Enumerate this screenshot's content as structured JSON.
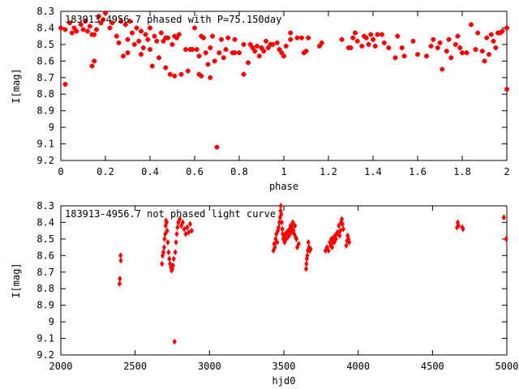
{
  "colors": {
    "points": "#ff0000",
    "axes": "#000000",
    "background": "#ffffff"
  },
  "chart_data": [
    {
      "type": "scatter",
      "title": "183913-4956.7 phased with P=75.150day",
      "xlabel": "phase",
      "ylabel": "I[mag]",
      "xlim": [
        0,
        2
      ],
      "ylim": [
        8.3,
        9.2
      ],
      "y_inverted": true,
      "grid": false,
      "xticks": [
        0,
        0.2,
        0.4,
        0.6,
        0.8,
        1,
        1.2,
        1.4,
        1.6,
        1.8,
        2
      ],
      "xtick_labels": [
        "0",
        "0.2",
        "0.4",
        "0.6",
        "0.8",
        "1",
        "1.2",
        "1.4",
        "1.6",
        "1.8",
        "2"
      ],
      "yticks": [
        8.3,
        8.4,
        8.5,
        8.6,
        8.7,
        8.8,
        8.9,
        9,
        9.1,
        9.2
      ],
      "ytick_labels": [
        "8.3",
        "8.4",
        "8.5",
        "8.6",
        "8.7",
        "8.8",
        "8.9",
        "9",
        "9.1",
        "9.2"
      ],
      "points": [
        [
          0.0,
          8.4
        ],
        [
          0.02,
          8.41
        ],
        [
          0.02,
          8.74
        ],
        [
          0.04,
          8.37
        ],
        [
          0.05,
          8.43
        ],
        [
          0.06,
          8.4
        ],
        [
          0.07,
          8.42
        ],
        [
          0.09,
          8.38
        ],
        [
          0.1,
          8.41
        ],
        [
          0.11,
          8.36
        ],
        [
          0.12,
          8.42
        ],
        [
          0.13,
          8.39
        ],
        [
          0.14,
          8.44
        ],
        [
          0.14,
          8.63
        ],
        [
          0.15,
          8.44
        ],
        [
          0.15,
          8.6
        ],
        [
          0.16,
          8.41
        ],
        [
          0.17,
          8.33
        ],
        [
          0.18,
          8.37
        ],
        [
          0.19,
          8.35
        ],
        [
          0.2,
          8.31
        ],
        [
          0.22,
          8.4
        ],
        [
          0.23,
          8.37
        ],
        [
          0.25,
          8.45
        ],
        [
          0.26,
          8.49
        ],
        [
          0.27,
          8.36
        ],
        [
          0.28,
          8.57
        ],
        [
          0.29,
          8.38
        ],
        [
          0.3,
          8.47
        ],
        [
          0.3,
          8.55
        ],
        [
          0.31,
          8.36
        ],
        [
          0.32,
          8.43
        ],
        [
          0.33,
          8.5
        ],
        [
          0.34,
          8.4
        ],
        [
          0.35,
          8.48
        ],
        [
          0.36,
          8.42
        ],
        [
          0.36,
          8.56
        ],
        [
          0.37,
          8.52
        ],
        [
          0.38,
          8.44
        ],
        [
          0.39,
          8.47
        ],
        [
          0.4,
          8.4
        ],
        [
          0.4,
          8.53
        ],
        [
          0.41,
          8.63
        ],
        [
          0.42,
          8.45
        ],
        [
          0.43,
          8.48
        ],
        [
          0.44,
          8.58
        ],
        [
          0.45,
          8.43
        ],
        [
          0.46,
          8.48
        ],
        [
          0.47,
          8.46
        ],
        [
          0.47,
          8.64
        ],
        [
          0.48,
          8.46
        ],
        [
          0.49,
          8.68
        ],
        [
          0.5,
          8.5
        ],
        [
          0.51,
          8.45
        ],
        [
          0.51,
          8.69
        ],
        [
          0.52,
          8.46
        ],
        [
          0.53,
          8.44
        ],
        [
          0.54,
          8.68
        ],
        [
          0.56,
          8.53
        ],
        [
          0.57,
          8.66
        ],
        [
          0.58,
          8.53
        ],
        [
          0.59,
          8.53
        ],
        [
          0.6,
          8.4
        ],
        [
          0.61,
          8.53
        ],
        [
          0.62,
          8.57
        ],
        [
          0.62,
          8.68
        ],
        [
          0.63,
          8.45
        ],
        [
          0.63,
          8.69
        ],
        [
          0.64,
          8.46
        ],
        [
          0.65,
          8.55
        ],
        [
          0.66,
          8.62
        ],
        [
          0.67,
          8.52
        ],
        [
          0.67,
          8.7
        ],
        [
          0.68,
          8.45
        ],
        [
          0.69,
          8.6
        ],
        [
          0.7,
          9.12
        ],
        [
          0.71,
          8.55
        ],
        [
          0.72,
          8.47
        ],
        [
          0.73,
          8.58
        ],
        [
          0.74,
          8.53
        ],
        [
          0.75,
          8.46
        ],
        [
          0.77,
          8.55
        ],
        [
          0.78,
          8.47
        ],
        [
          0.78,
          8.55
        ],
        [
          0.8,
          8.55
        ],
        [
          0.82,
          8.5
        ],
        [
          0.82,
          8.68
        ],
        [
          0.84,
          8.61
        ],
        [
          0.85,
          8.5
        ],
        [
          0.86,
          8.52
        ],
        [
          0.87,
          8.54
        ],
        [
          0.88,
          8.51
        ],
        [
          0.89,
          8.57
        ],
        [
          0.9,
          8.52
        ],
        [
          0.91,
          8.54
        ],
        [
          0.92,
          8.48
        ],
        [
          0.93,
          8.52
        ],
        [
          0.94,
          8.5
        ],
        [
          0.95,
          8.5
        ],
        [
          0.97,
          8.49
        ],
        [
          0.98,
          8.53
        ],
        [
          0.99,
          8.55
        ],
        [
          1.0,
          8.57
        ],
        [
          1.01,
          8.51
        ],
        [
          1.03,
          8.43
        ],
        [
          1.03,
          8.47
        ],
        [
          1.06,
          8.46
        ],
        [
          1.08,
          8.46
        ],
        [
          1.09,
          8.55
        ],
        [
          1.1,
          8.54
        ],
        [
          1.11,
          8.46
        ],
        [
          1.16,
          8.51
        ],
        [
          1.17,
          8.49
        ],
        [
          1.26,
          8.47
        ],
        [
          1.29,
          8.52
        ],
        [
          1.3,
          8.52
        ],
        [
          1.31,
          8.46
        ],
        [
          1.32,
          8.43
        ],
        [
          1.33,
          8.48
        ],
        [
          1.35,
          8.51
        ],
        [
          1.36,
          8.45
        ],
        [
          1.37,
          8.46
        ],
        [
          1.38,
          8.5
        ],
        [
          1.39,
          8.44
        ],
        [
          1.4,
          8.47
        ],
        [
          1.41,
          8.51
        ],
        [
          1.42,
          8.44
        ],
        [
          1.44,
          8.44
        ],
        [
          1.45,
          8.49
        ],
        [
          1.47,
          8.52
        ],
        [
          1.5,
          8.58
        ],
        [
          1.51,
          8.45
        ],
        [
          1.53,
          8.52
        ],
        [
          1.54,
          8.57
        ],
        [
          1.58,
          8.48
        ],
        [
          1.6,
          8.56
        ],
        [
          1.64,
          8.57
        ],
        [
          1.66,
          8.51
        ],
        [
          1.67,
          8.47
        ],
        [
          1.69,
          8.52
        ],
        [
          1.7,
          8.49
        ],
        [
          1.71,
          8.65
        ],
        [
          1.73,
          8.54
        ],
        [
          1.74,
          8.47
        ],
        [
          1.75,
          8.58
        ],
        [
          1.77,
          8.5
        ],
        [
          1.78,
          8.45
        ],
        [
          1.79,
          8.52
        ],
        [
          1.8,
          8.55
        ],
        [
          1.82,
          8.55
        ],
        [
          1.84,
          8.38
        ],
        [
          1.86,
          8.53
        ],
        [
          1.87,
          8.43
        ],
        [
          1.89,
          8.54
        ],
        [
          1.9,
          8.6
        ],
        [
          1.91,
          8.46
        ],
        [
          1.92,
          8.56
        ],
        [
          1.93,
          8.44
        ],
        [
          1.94,
          8.48
        ],
        [
          1.95,
          8.52
        ],
        [
          1.96,
          8.43
        ],
        [
          1.97,
          8.43
        ],
        [
          1.98,
          8.42
        ],
        [
          2.0,
          8.4
        ],
        [
          2.0,
          8.77
        ]
      ]
    },
    {
      "type": "scatter",
      "title": "183913-4956.7 not phased light curve",
      "xlabel": "hjd0",
      "ylabel": "I[mag]",
      "xlim": [
        2000,
        5000
      ],
      "ylim": [
        8.3,
        9.2
      ],
      "y_inverted": true,
      "grid": false,
      "xticks": [
        2000,
        2500,
        3000,
        3500,
        4000,
        4500,
        5000
      ],
      "xtick_labels": [
        "2000",
        "2500",
        "3000",
        "3500",
        "4000",
        "4500",
        "5000"
      ],
      "yticks": [
        8.3,
        8.4,
        8.5,
        8.6,
        8.7,
        8.8,
        8.9,
        9,
        9.1,
        9.2
      ],
      "ytick_labels": [
        "8.3",
        "8.4",
        "8.5",
        "8.6",
        "8.7",
        "8.8",
        "8.9",
        "9",
        "9.1",
        "9.2"
      ],
      "points": [
        [
          2395,
          8.77
        ],
        [
          2397,
          8.74
        ],
        [
          2402,
          8.6
        ],
        [
          2404,
          8.63
        ],
        [
          2680,
          8.65
        ],
        [
          2685,
          8.6
        ],
        [
          2690,
          8.58
        ],
        [
          2695,
          8.55
        ],
        [
          2698,
          8.5
        ],
        [
          2702,
          8.47
        ],
        [
          2705,
          8.42
        ],
        [
          2708,
          8.39
        ],
        [
          2712,
          8.4
        ],
        [
          2715,
          8.45
        ],
        [
          2720,
          8.52
        ],
        [
          2725,
          8.58
        ],
        [
          2730,
          8.62
        ],
        [
          2735,
          8.65
        ],
        [
          2740,
          8.67
        ],
        [
          2745,
          8.69
        ],
        [
          2750,
          8.68
        ],
        [
          2755,
          8.66
        ],
        [
          2760,
          8.62
        ],
        [
          2765,
          9.12
        ],
        [
          2770,
          8.58
        ],
        [
          2775,
          8.52
        ],
        [
          2780,
          8.47
        ],
        [
          2785,
          8.43
        ],
        [
          2790,
          8.4
        ],
        [
          2800,
          8.38
        ],
        [
          2810,
          8.42
        ],
        [
          2820,
          8.4
        ],
        [
          2830,
          8.44
        ],
        [
          2840,
          8.47
        ],
        [
          2850,
          8.43
        ],
        [
          2860,
          8.46
        ],
        [
          2870,
          8.41
        ],
        [
          2880,
          8.45
        ],
        [
          3430,
          8.57
        ],
        [
          3435,
          8.53
        ],
        [
          3440,
          8.55
        ],
        [
          3445,
          8.5
        ],
        [
          3450,
          8.47
        ],
        [
          3455,
          8.52
        ],
        [
          3460,
          8.45
        ],
        [
          3465,
          8.43
        ],
        [
          3470,
          8.4
        ],
        [
          3475,
          8.37
        ],
        [
          3478,
          8.33
        ],
        [
          3480,
          8.3
        ],
        [
          3483,
          8.35
        ],
        [
          3486,
          8.4
        ],
        [
          3490,
          8.44
        ],
        [
          3493,
          8.47
        ],
        [
          3496,
          8.5
        ],
        [
          3500,
          8.48
        ],
        [
          3505,
          8.52
        ],
        [
          3510,
          8.47
        ],
        [
          3515,
          8.5
        ],
        [
          3520,
          8.46
        ],
        [
          3525,
          8.49
        ],
        [
          3530,
          8.45
        ],
        [
          3535,
          8.48
        ],
        [
          3540,
          8.44
        ],
        [
          3545,
          8.42
        ],
        [
          3550,
          8.46
        ],
        [
          3555,
          8.43
        ],
        [
          3560,
          8.4
        ],
        [
          3565,
          8.45
        ],
        [
          3570,
          8.47
        ],
        [
          3575,
          8.42
        ],
        [
          3580,
          8.49
        ],
        [
          3585,
          8.5
        ],
        [
          3590,
          8.55
        ],
        [
          3600,
          8.53
        ],
        [
          3650,
          8.68
        ],
        [
          3652,
          8.65
        ],
        [
          3655,
          8.62
        ],
        [
          3658,
          8.6
        ],
        [
          3662,
          8.57
        ],
        [
          3665,
          8.52
        ],
        [
          3670,
          8.55
        ],
        [
          3675,
          8.57
        ],
        [
          3680,
          8.56
        ],
        [
          3780,
          8.57
        ],
        [
          3790,
          8.55
        ],
        [
          3800,
          8.57
        ],
        [
          3810,
          8.52
        ],
        [
          3815,
          8.54
        ],
        [
          3820,
          8.5
        ],
        [
          3825,
          8.55
        ],
        [
          3830,
          8.52
        ],
        [
          3835,
          8.49
        ],
        [
          3840,
          8.52
        ],
        [
          3845,
          8.48
        ],
        [
          3850,
          8.5
        ],
        [
          3855,
          8.47
        ],
        [
          3860,
          8.46
        ],
        [
          3870,
          8.42
        ],
        [
          3875,
          8.48
        ],
        [
          3880,
          8.45
        ],
        [
          3885,
          8.4
        ],
        [
          3890,
          8.38
        ],
        [
          3895,
          8.41
        ],
        [
          3900,
          8.44
        ],
        [
          3920,
          8.54
        ],
        [
          3925,
          8.51
        ],
        [
          3930,
          8.48
        ],
        [
          3935,
          8.5
        ],
        [
          3940,
          8.52
        ],
        [
          4665,
          8.43
        ],
        [
          4670,
          8.4
        ],
        [
          4675,
          8.42
        ],
        [
          4700,
          8.43
        ],
        [
          4705,
          8.44
        ],
        [
          4980,
          8.37
        ],
        [
          4995,
          8.5
        ]
      ]
    }
  ]
}
